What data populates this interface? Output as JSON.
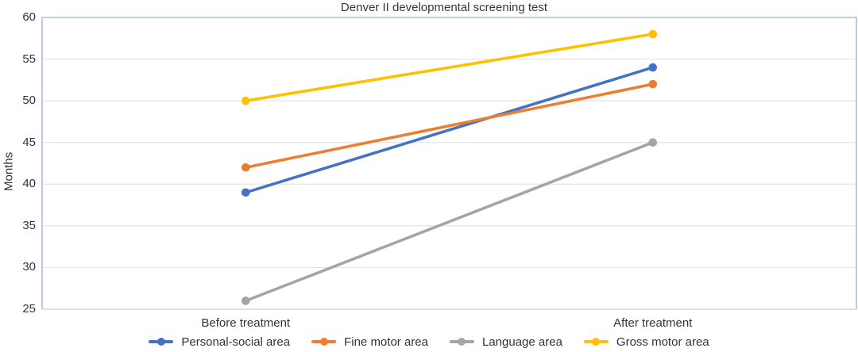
{
  "chart_data": {
    "type": "line",
    "title": "Denver II developmental screening test",
    "categories": [
      "Before treatment",
      "After treatment"
    ],
    "series": [
      {
        "name": "Personal-social area",
        "color": "#4472C4",
        "values": [
          39,
          54
        ]
      },
      {
        "name": "Fine motor area",
        "color": "#ED7D31",
        "values": [
          42,
          52
        ]
      },
      {
        "name": "Language area",
        "color": "#A5A5A5",
        "values": [
          26,
          45
        ]
      },
      {
        "name": "Gross motor area",
        "color": "#FFC000",
        "values": [
          50,
          58
        ]
      }
    ],
    "xlabel": "",
    "ylabel": "Months",
    "ylim": [
      25,
      60
    ],
    "ytick_step": 5,
    "yticks": [
      25,
      30,
      35,
      40,
      45,
      50,
      55,
      60
    ],
    "grid": true,
    "legend_position": "bottom",
    "colors": {
      "plot_border": "#a6c0df",
      "bottom_axis": "#d5d5d5",
      "gridline": "#e4e4e4",
      "text": "#333333"
    }
  }
}
